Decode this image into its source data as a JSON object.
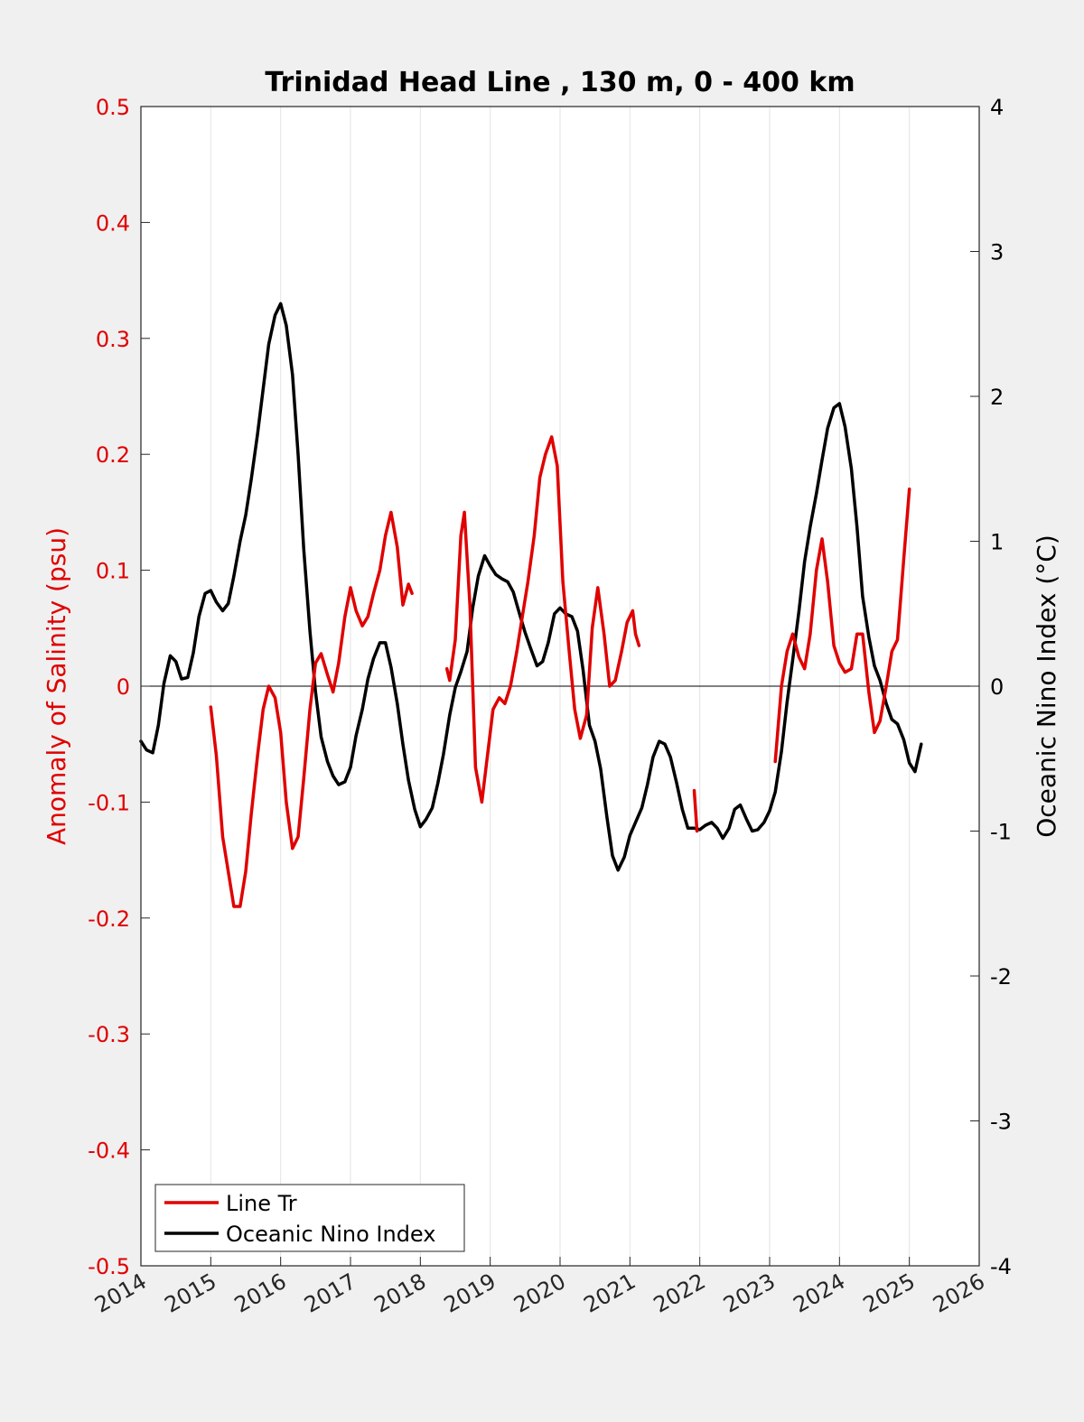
{
  "chart_data": {
    "type": "line",
    "title": "Trinidad Head Line , 130 m, 0 - 400 km",
    "xlabel": "",
    "ylabel_left": "Anomaly of Salinity (psu)",
    "ylabel_right": "Oceanic Nino Index (°C)",
    "xlim": [
      2014,
      2026
    ],
    "ylim_left": [
      -0.5,
      0.5
    ],
    "ylim_right": [
      -4,
      4
    ],
    "x_ticks": [
      2014,
      2015,
      2016,
      2017,
      2018,
      2019,
      2020,
      2021,
      2022,
      2023,
      2024,
      2025,
      2026
    ],
    "x_tick_labels": [
      "2014",
      "2015",
      "2016",
      "2017",
      "2018",
      "2019",
      "2020",
      "2021",
      "2022",
      "2023",
      "2024",
      "2025",
      "2026"
    ],
    "y_ticks_left": [
      0.5,
      0.4,
      0.3,
      0.2,
      0.1,
      0,
      -0.1,
      -0.2,
      -0.3,
      -0.4,
      -0.5
    ],
    "y_tick_labels_left": [
      "0.5",
      "0.4",
      "0.3",
      "0.2",
      "0.1",
      "0",
      "-0.1",
      "-0.2",
      "-0.3",
      "-0.4",
      "-0.5"
    ],
    "y_ticks_right": [
      4,
      3,
      2,
      1,
      0,
      -1,
      -2,
      -3,
      -4
    ],
    "y_tick_labels_right": [
      "4",
      "3",
      "2",
      "1",
      "0",
      "-1",
      "-2",
      "-3",
      "-4"
    ],
    "grid": "vertical",
    "zero_line": true,
    "legend_position": "bottom-left",
    "series": [
      {
        "name": "Line Tr",
        "axis": "left",
        "color": "#e00000",
        "segments": [
          [
            [
              2015.0,
              -0.018
            ],
            [
              2015.08,
              -0.06
            ],
            [
              2015.17,
              -0.13
            ],
            [
              2015.25,
              -0.16
            ],
            [
              2015.33,
              -0.19
            ],
            [
              2015.42,
              -0.19
            ],
            [
              2015.5,
              -0.16
            ],
            [
              2015.58,
              -0.11
            ],
            [
              2015.67,
              -0.06
            ],
            [
              2015.75,
              -0.02
            ],
            [
              2015.83,
              0.0
            ],
            [
              2015.92,
              -0.01
            ],
            [
              2016.0,
              -0.04
            ],
            [
              2016.08,
              -0.1
            ],
            [
              2016.17,
              -0.14
            ],
            [
              2016.25,
              -0.13
            ],
            [
              2016.33,
              -0.08
            ],
            [
              2016.42,
              -0.02
            ],
            [
              2016.5,
              0.02
            ],
            [
              2016.58,
              0.028
            ],
            [
              2016.67,
              0.01
            ],
            [
              2016.75,
              -0.005
            ],
            [
              2016.83,
              0.02
            ],
            [
              2016.92,
              0.06
            ],
            [
              2017.0,
              0.085
            ],
            [
              2017.08,
              0.065
            ],
            [
              2017.17,
              0.052
            ],
            [
              2017.25,
              0.06
            ],
            [
              2017.33,
              0.08
            ],
            [
              2017.42,
              0.1
            ],
            [
              2017.5,
              0.13
            ],
            [
              2017.58,
              0.15
            ],
            [
              2017.67,
              0.12
            ],
            [
              2017.75,
              0.07
            ],
            [
              2017.83,
              0.088
            ],
            [
              2017.88,
              0.08
            ]
          ],
          [
            [
              2018.38,
              0.015
            ],
            [
              2018.42,
              0.005
            ],
            [
              2018.5,
              0.04
            ],
            [
              2018.58,
              0.13
            ],
            [
              2018.63,
              0.15
            ],
            [
              2018.71,
              0.07
            ],
            [
              2018.79,
              -0.07
            ],
            [
              2018.88,
              -0.1
            ],
            [
              2018.96,
              -0.06
            ],
            [
              2019.04,
              -0.02
            ],
            [
              2019.13,
              -0.01
            ],
            [
              2019.21,
              -0.015
            ],
            [
              2019.29,
              0.0
            ],
            [
              2019.38,
              0.03
            ],
            [
              2019.46,
              0.06
            ],
            [
              2019.54,
              0.09
            ],
            [
              2019.63,
              0.13
            ],
            [
              2019.71,
              0.18
            ],
            [
              2019.79,
              0.2
            ],
            [
              2019.88,
              0.215
            ],
            [
              2019.96,
              0.19
            ],
            [
              2020.04,
              0.09
            ],
            [
              2020.13,
              0.03
            ],
            [
              2020.21,
              -0.02
            ],
            [
              2020.29,
              -0.045
            ],
            [
              2020.38,
              -0.025
            ],
            [
              2020.46,
              0.05
            ],
            [
              2020.54,
              0.085
            ],
            [
              2020.63,
              0.045
            ],
            [
              2020.71,
              0.0
            ],
            [
              2020.79,
              0.005
            ],
            [
              2020.88,
              0.03
            ],
            [
              2020.96,
              0.055
            ],
            [
              2021.04,
              0.065
            ],
            [
              2021.08,
              0.045
            ],
            [
              2021.13,
              0.035
            ]
          ],
          [
            [
              2021.92,
              -0.09
            ],
            [
              2021.96,
              -0.125
            ]
          ],
          [
            [
              2023.08,
              -0.065
            ],
            [
              2023.17,
              0.0
            ],
            [
              2023.25,
              0.03
            ],
            [
              2023.33,
              0.045
            ],
            [
              2023.42,
              0.025
            ],
            [
              2023.5,
              0.015
            ],
            [
              2023.58,
              0.045
            ],
            [
              2023.67,
              0.1
            ],
            [
              2023.75,
              0.127
            ],
            [
              2023.83,
              0.09
            ],
            [
              2023.92,
              0.035
            ],
            [
              2024.0,
              0.02
            ],
            [
              2024.08,
              0.012
            ],
            [
              2024.17,
              0.015
            ],
            [
              2024.25,
              0.045
            ],
            [
              2024.33,
              0.045
            ],
            [
              2024.42,
              -0.005
            ],
            [
              2024.5,
              -0.04
            ],
            [
              2024.58,
              -0.03
            ],
            [
              2024.67,
              0.0
            ],
            [
              2024.75,
              0.03
            ],
            [
              2024.83,
              0.04
            ],
            [
              2024.92,
              0.11
            ],
            [
              2025.0,
              0.17
            ]
          ]
        ]
      },
      {
        "name": "Oceanic Nino Index",
        "axis": "right",
        "color": "#000000",
        "segments": [
          [
            [
              2014.0,
              -0.38
            ],
            [
              2014.08,
              -0.44
            ],
            [
              2014.17,
              -0.46
            ],
            [
              2014.25,
              -0.27
            ],
            [
              2014.33,
              0.02
            ],
            [
              2014.42,
              0.21
            ],
            [
              2014.5,
              0.17
            ],
            [
              2014.58,
              0.05
            ],
            [
              2014.67,
              0.06
            ],
            [
              2014.75,
              0.23
            ],
            [
              2014.83,
              0.48
            ],
            [
              2014.92,
              0.64
            ],
            [
              2015.0,
              0.66
            ],
            [
              2015.08,
              0.58
            ],
            [
              2015.17,
              0.52
            ],
            [
              2015.25,
              0.57
            ],
            [
              2015.33,
              0.76
            ],
            [
              2015.42,
              1.0
            ],
            [
              2015.5,
              1.18
            ],
            [
              2015.58,
              1.43
            ],
            [
              2015.67,
              1.74
            ],
            [
              2015.75,
              2.05
            ],
            [
              2015.83,
              2.36
            ],
            [
              2015.92,
              2.56
            ],
            [
              2016.0,
              2.64
            ],
            [
              2016.08,
              2.49
            ],
            [
              2016.17,
              2.15
            ],
            [
              2016.25,
              1.6
            ],
            [
              2016.33,
              0.95
            ],
            [
              2016.42,
              0.38
            ],
            [
              2016.5,
              -0.04
            ],
            [
              2016.58,
              -0.35
            ],
            [
              2016.67,
              -0.52
            ],
            [
              2016.75,
              -0.62
            ],
            [
              2016.83,
              -0.68
            ],
            [
              2016.92,
              -0.66
            ],
            [
              2017.0,
              -0.56
            ],
            [
              2017.08,
              -0.34
            ],
            [
              2017.17,
              -0.16
            ],
            [
              2017.25,
              0.05
            ],
            [
              2017.33,
              0.19
            ],
            [
              2017.42,
              0.3
            ],
            [
              2017.5,
              0.3
            ],
            [
              2017.58,
              0.13
            ],
            [
              2017.67,
              -0.12
            ],
            [
              2017.75,
              -0.4
            ],
            [
              2017.83,
              -0.65
            ],
            [
              2017.92,
              -0.85
            ],
            [
              2018.0,
              -0.97
            ],
            [
              2018.08,
              -0.92
            ],
            [
              2018.17,
              -0.84
            ],
            [
              2018.25,
              -0.67
            ],
            [
              2018.33,
              -0.47
            ],
            [
              2018.42,
              -0.2
            ],
            [
              2018.5,
              -0.01
            ],
            [
              2018.58,
              0.1
            ],
            [
              2018.67,
              0.24
            ],
            [
              2018.75,
              0.54
            ],
            [
              2018.83,
              0.76
            ],
            [
              2018.92,
              0.9
            ],
            [
              2019.0,
              0.83
            ],
            [
              2019.08,
              0.77
            ],
            [
              2019.17,
              0.74
            ],
            [
              2019.25,
              0.72
            ],
            [
              2019.33,
              0.65
            ],
            [
              2019.42,
              0.5
            ],
            [
              2019.5,
              0.37
            ],
            [
              2019.58,
              0.26
            ],
            [
              2019.67,
              0.14
            ],
            [
              2019.75,
              0.17
            ],
            [
              2019.83,
              0.3
            ],
            [
              2019.92,
              0.5
            ],
            [
              2020.0,
              0.54
            ],
            [
              2020.08,
              0.5
            ],
            [
              2020.17,
              0.48
            ],
            [
              2020.25,
              0.38
            ],
            [
              2020.33,
              0.11
            ],
            [
              2020.42,
              -0.27
            ],
            [
              2020.5,
              -0.38
            ],
            [
              2020.58,
              -0.57
            ],
            [
              2020.67,
              -0.9
            ],
            [
              2020.75,
              -1.17
            ],
            [
              2020.83,
              -1.27
            ],
            [
              2020.92,
              -1.18
            ],
            [
              2021.0,
              -1.03
            ],
            [
              2021.08,
              -0.94
            ],
            [
              2021.17,
              -0.84
            ],
            [
              2021.25,
              -0.68
            ],
            [
              2021.33,
              -0.49
            ],
            [
              2021.42,
              -0.38
            ],
            [
              2021.5,
              -0.4
            ],
            [
              2021.58,
              -0.49
            ],
            [
              2021.67,
              -0.67
            ],
            [
              2021.75,
              -0.85
            ],
            [
              2021.83,
              -0.98
            ],
            [
              2021.92,
              -0.98
            ],
            [
              2022.0,
              -0.99
            ],
            [
              2022.08,
              -0.96
            ],
            [
              2022.17,
              -0.94
            ],
            [
              2022.25,
              -0.98
            ],
            [
              2022.33,
              -1.05
            ],
            [
              2022.42,
              -0.98
            ],
            [
              2022.5,
              -0.85
            ],
            [
              2022.58,
              -0.82
            ],
            [
              2022.67,
              -0.92
            ],
            [
              2022.75,
              -1.0
            ],
            [
              2022.83,
              -0.99
            ],
            [
              2022.92,
              -0.94
            ],
            [
              2023.0,
              -0.86
            ],
            [
              2023.08,
              -0.73
            ],
            [
              2023.17,
              -0.45
            ],
            [
              2023.25,
              -0.11
            ],
            [
              2023.33,
              0.18
            ],
            [
              2023.42,
              0.52
            ],
            [
              2023.5,
              0.86
            ],
            [
              2023.58,
              1.1
            ],
            [
              2023.67,
              1.33
            ],
            [
              2023.75,
              1.56
            ],
            [
              2023.83,
              1.78
            ],
            [
              2023.92,
              1.92
            ],
            [
              2024.0,
              1.95
            ],
            [
              2024.08,
              1.79
            ],
            [
              2024.17,
              1.5
            ],
            [
              2024.25,
              1.1
            ],
            [
              2024.33,
              0.62
            ],
            [
              2024.42,
              0.34
            ],
            [
              2024.5,
              0.14
            ],
            [
              2024.58,
              0.04
            ],
            [
              2024.67,
              -0.12
            ],
            [
              2024.75,
              -0.23
            ],
            [
              2024.83,
              -0.26
            ],
            [
              2024.92,
              -0.37
            ],
            [
              2025.0,
              -0.53
            ],
            [
              2025.08,
              -0.59
            ],
            [
              2025.17,
              -0.4
            ]
          ]
        ]
      }
    ]
  }
}
